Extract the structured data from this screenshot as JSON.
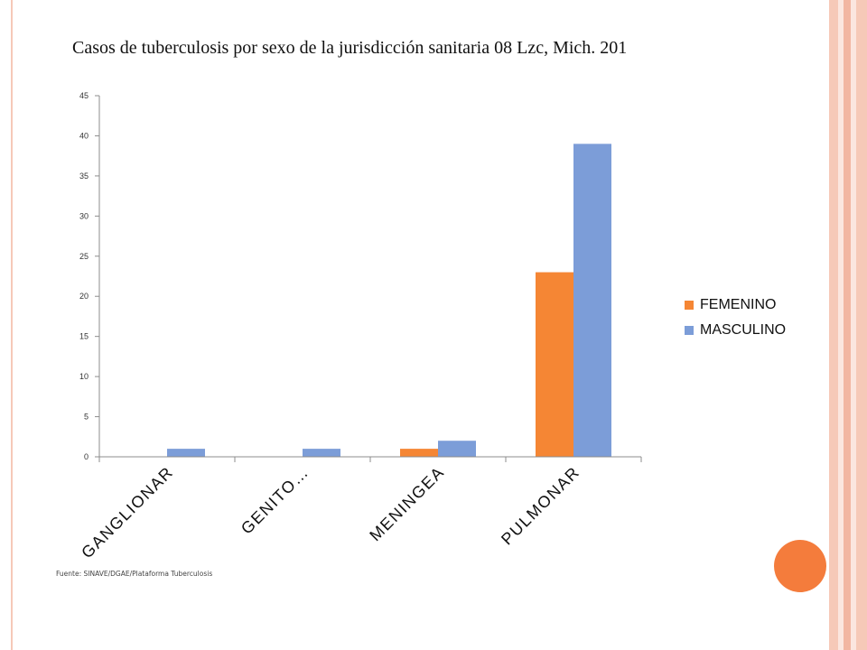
{
  "title": "Casos de tuberculosis por sexo de la jurisdicción sanitaria 08 Lzc, Mich. 201",
  "source": "Fuente: SINAVE/DGAE/Plataforma Tuberculosis",
  "colors": {
    "femenino": "#f58634",
    "masculino": "#7c9dd8",
    "axis": "#8c8c8c",
    "frame_stripes": [
      "#f6c9b8",
      "#fbe6df",
      "#f2b6a2"
    ],
    "circle": "#f47c3c"
  },
  "chart_data": {
    "type": "bar",
    "categories": [
      "GANGLIONAR",
      "GENITO…",
      "MENINGEA",
      "PULMONAR"
    ],
    "series": [
      {
        "name": "FEMENINO",
        "values": [
          0,
          0,
          1,
          23
        ]
      },
      {
        "name": "MASCULINO",
        "values": [
          1,
          1,
          2,
          39
        ]
      }
    ],
    "ylim": [
      0,
      45
    ],
    "yticks": [
      0,
      5,
      10,
      15,
      20,
      25,
      30,
      35,
      40,
      45
    ],
    "grid": false,
    "legend": "right"
  }
}
